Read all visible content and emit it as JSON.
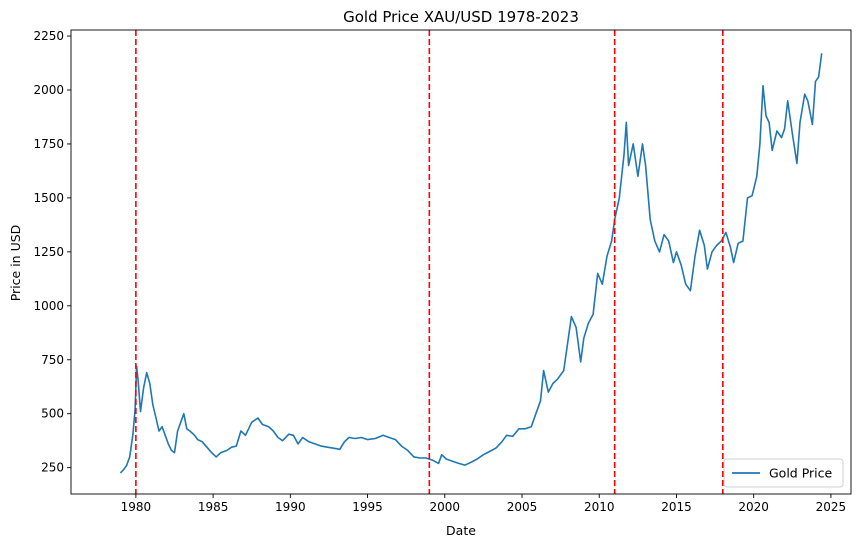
{
  "chart_data": {
    "type": "line",
    "title": "Gold Price XAU/USD 1978-2023",
    "xlabel": "Date",
    "ylabel": "Price in USD",
    "xlim": [
      1975.8,
      2026.3
    ],
    "ylim": [
      128,
      2278
    ],
    "x_ticks": [
      1980,
      1985,
      1990,
      1995,
      2000,
      2005,
      2010,
      2015,
      2020,
      2025
    ],
    "y_ticks": [
      250,
      500,
      750,
      1000,
      1250,
      1500,
      1750,
      2000,
      2250
    ],
    "grid": false,
    "legend": {
      "position": "bottom-right",
      "entries": [
        "Gold Price"
      ]
    },
    "series": [
      {
        "name": "Gold Price",
        "color": "#1f77b4",
        "points": [
          [
            1979.0,
            226
          ],
          [
            1979.2,
            240
          ],
          [
            1979.4,
            260
          ],
          [
            1979.6,
            300
          ],
          [
            1979.8,
            400
          ],
          [
            1979.95,
            520
          ],
          [
            1980.05,
            720
          ],
          [
            1980.15,
            650
          ],
          [
            1980.3,
            510
          ],
          [
            1980.5,
            620
          ],
          [
            1980.7,
            690
          ],
          [
            1980.9,
            640
          ],
          [
            1981.1,
            540
          ],
          [
            1981.3,
            480
          ],
          [
            1981.5,
            420
          ],
          [
            1981.7,
            440
          ],
          [
            1981.9,
            400
          ],
          [
            1982.1,
            360
          ],
          [
            1982.3,
            330
          ],
          [
            1982.5,
            320
          ],
          [
            1982.7,
            420
          ],
          [
            1982.9,
            460
          ],
          [
            1983.1,
            500
          ],
          [
            1983.3,
            430
          ],
          [
            1983.5,
            420
          ],
          [
            1983.8,
            400
          ],
          [
            1984.0,
            380
          ],
          [
            1984.3,
            370
          ],
          [
            1984.6,
            345
          ],
          [
            1984.9,
            320
          ],
          [
            1985.2,
            300
          ],
          [
            1985.5,
            320
          ],
          [
            1985.9,
            330
          ],
          [
            1986.2,
            345
          ],
          [
            1986.5,
            350
          ],
          [
            1986.8,
            420
          ],
          [
            1987.1,
            400
          ],
          [
            1987.5,
            460
          ],
          [
            1987.9,
            480
          ],
          [
            1988.2,
            450
          ],
          [
            1988.6,
            440
          ],
          [
            1988.9,
            420
          ],
          [
            1989.2,
            390
          ],
          [
            1989.5,
            375
          ],
          [
            1989.9,
            405
          ],
          [
            1990.2,
            400
          ],
          [
            1990.5,
            360
          ],
          [
            1990.8,
            390
          ],
          [
            1991.2,
            370
          ],
          [
            1991.6,
            360
          ],
          [
            1992.0,
            350
          ],
          [
            1992.4,
            345
          ],
          [
            1992.8,
            340
          ],
          [
            1993.2,
            335
          ],
          [
            1993.5,
            370
          ],
          [
            1993.8,
            390
          ],
          [
            1994.2,
            385
          ],
          [
            1994.6,
            390
          ],
          [
            1995.0,
            380
          ],
          [
            1995.5,
            385
          ],
          [
            1996.0,
            400
          ],
          [
            1996.4,
            390
          ],
          [
            1996.8,
            380
          ],
          [
            1997.2,
            350
          ],
          [
            1997.6,
            330
          ],
          [
            1998.0,
            300
          ],
          [
            1998.4,
            295
          ],
          [
            1998.8,
            295
          ],
          [
            1999.2,
            285
          ],
          [
            1999.6,
            270
          ],
          [
            1999.8,
            310
          ],
          [
            2000.1,
            290
          ],
          [
            2000.5,
            280
          ],
          [
            2000.9,
            270
          ],
          [
            2001.3,
            262
          ],
          [
            2001.7,
            275
          ],
          [
            2002.1,
            290
          ],
          [
            2002.5,
            310
          ],
          [
            2002.9,
            325
          ],
          [
            2003.3,
            340
          ],
          [
            2003.7,
            370
          ],
          [
            2004.0,
            400
          ],
          [
            2004.4,
            395
          ],
          [
            2004.8,
            430
          ],
          [
            2005.2,
            430
          ],
          [
            2005.6,
            440
          ],
          [
            2005.9,
            500
          ],
          [
            2006.2,
            560
          ],
          [
            2006.4,
            700
          ],
          [
            2006.7,
            600
          ],
          [
            2007.0,
            640
          ],
          [
            2007.3,
            660
          ],
          [
            2007.7,
            700
          ],
          [
            2007.9,
            800
          ],
          [
            2008.2,
            950
          ],
          [
            2008.5,
            900
          ],
          [
            2008.8,
            740
          ],
          [
            2009.0,
            850
          ],
          [
            2009.3,
            920
          ],
          [
            2009.6,
            960
          ],
          [
            2009.9,
            1150
          ],
          [
            2010.2,
            1100
          ],
          [
            2010.5,
            1230
          ],
          [
            2010.8,
            1300
          ],
          [
            2011.0,
            1400
          ],
          [
            2011.3,
            1500
          ],
          [
            2011.6,
            1700
          ],
          [
            2011.75,
            1850
          ],
          [
            2011.9,
            1650
          ],
          [
            2012.2,
            1750
          ],
          [
            2012.5,
            1600
          ],
          [
            2012.8,
            1750
          ],
          [
            2013.0,
            1650
          ],
          [
            2013.3,
            1400
          ],
          [
            2013.6,
            1300
          ],
          [
            2013.9,
            1250
          ],
          [
            2014.2,
            1330
          ],
          [
            2014.5,
            1300
          ],
          [
            2014.8,
            1200
          ],
          [
            2015.0,
            1250
          ],
          [
            2015.3,
            1190
          ],
          [
            2015.6,
            1100
          ],
          [
            2015.9,
            1070
          ],
          [
            2016.2,
            1230
          ],
          [
            2016.5,
            1350
          ],
          [
            2016.8,
            1280
          ],
          [
            2017.0,
            1170
          ],
          [
            2017.3,
            1250
          ],
          [
            2017.6,
            1280
          ],
          [
            2017.9,
            1300
          ],
          [
            2018.2,
            1340
          ],
          [
            2018.5,
            1270
          ],
          [
            2018.7,
            1200
          ],
          [
            2019.0,
            1290
          ],
          [
            2019.3,
            1300
          ],
          [
            2019.6,
            1500
          ],
          [
            2019.9,
            1510
          ],
          [
            2020.2,
            1600
          ],
          [
            2020.4,
            1750
          ],
          [
            2020.6,
            2020
          ],
          [
            2020.8,
            1880
          ],
          [
            2021.0,
            1850
          ],
          [
            2021.2,
            1720
          ],
          [
            2021.5,
            1810
          ],
          [
            2021.8,
            1780
          ],
          [
            2022.0,
            1820
          ],
          [
            2022.2,
            1950
          ],
          [
            2022.5,
            1800
          ],
          [
            2022.8,
            1660
          ],
          [
            2023.0,
            1850
          ],
          [
            2023.3,
            1980
          ],
          [
            2023.5,
            1950
          ],
          [
            2023.8,
            1840
          ],
          [
            2024.0,
            2040
          ],
          [
            2024.2,
            2060
          ],
          [
            2024.4,
            2170
          ]
        ]
      }
    ],
    "vlines": [
      {
        "x": 1980.0,
        "color": "#ff0000",
        "style": "dashed"
      },
      {
        "x": 1999.0,
        "color": "#ff0000",
        "style": "dashed"
      },
      {
        "x": 2011.0,
        "color": "#ff0000",
        "style": "dashed"
      },
      {
        "x": 2018.0,
        "color": "#ff0000",
        "style": "dashed"
      }
    ]
  }
}
